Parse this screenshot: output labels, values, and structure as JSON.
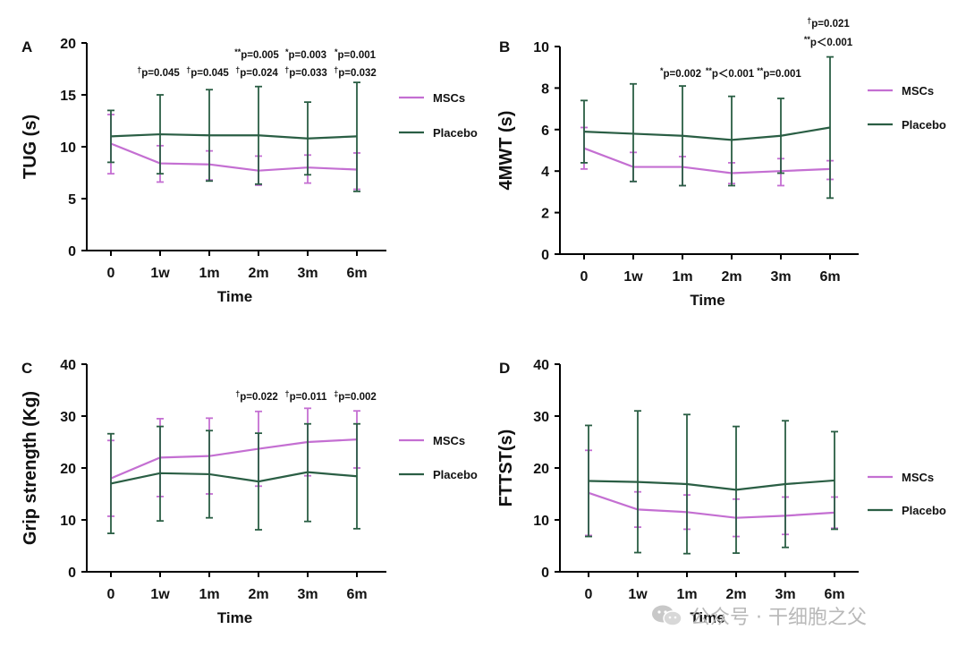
{
  "colors": {
    "msc": "#c46fd2",
    "placebo": "#2a5e44",
    "axis": "#000000"
  },
  "watermark": {
    "text": "公众号 · 干细胞之父",
    "icon": "wechat-icon"
  },
  "chart_data": [
    {
      "type": "line",
      "panel_label": "A",
      "categories": [
        "0",
        "1w",
        "1m",
        "2m",
        "3m",
        "6m"
      ],
      "xlabel": "Time",
      "ylabel": "TUG (s)",
      "ylim": [
        0,
        20
      ],
      "yticks": [
        0,
        5,
        10,
        15,
        20
      ],
      "legend_position": "right",
      "series": [
        {
          "name": "MSCs",
          "values": [
            10.3,
            8.4,
            8.3,
            7.7,
            8.0,
            7.8
          ],
          "err_low": [
            7.4,
            6.6,
            6.8,
            6.3,
            6.5,
            5.9
          ],
          "err_high": [
            13.1,
            10.1,
            9.6,
            9.1,
            9.2,
            9.4
          ]
        },
        {
          "name": "Placebo",
          "values": [
            11.0,
            11.2,
            11.1,
            11.1,
            10.8,
            11.0
          ],
          "err_low": [
            8.5,
            7.4,
            6.7,
            6.4,
            7.3,
            5.7
          ],
          "err_high": [
            13.5,
            15.0,
            15.5,
            15.8,
            14.3,
            16.2
          ]
        }
      ],
      "annotations": [
        {
          "category": "1w",
          "level": 1,
          "mark": "†",
          "text": "p=0.045"
        },
        {
          "category": "1m",
          "level": 1,
          "mark": "†",
          "text": "p=0.045"
        },
        {
          "category": "2m",
          "level": 2,
          "mark": "**",
          "text": "p=0.005"
        },
        {
          "category": "2m",
          "level": 1,
          "mark": "†",
          "text": "p=0.024"
        },
        {
          "category": "3m",
          "level": 2,
          "mark": "*",
          "text": "p=0.003"
        },
        {
          "category": "3m",
          "level": 1,
          "mark": "†",
          "text": "p=0.033"
        },
        {
          "category": "6m",
          "level": 2,
          "mark": "*",
          "text": "p=0.001"
        },
        {
          "category": "6m",
          "level": 1,
          "mark": "†",
          "text": "p=0.032"
        }
      ]
    },
    {
      "type": "line",
      "panel_label": "B",
      "categories": [
        "0",
        "1w",
        "1m",
        "2m",
        "3m",
        "6m"
      ],
      "xlabel": "Time",
      "ylabel": "4MWT (s)",
      "ylim": [
        0,
        10
      ],
      "yticks": [
        0,
        2,
        4,
        6,
        8,
        10
      ],
      "legend_position": "right",
      "series": [
        {
          "name": "MSCs",
          "values": [
            5.1,
            4.2,
            4.2,
            3.9,
            4.0,
            4.1
          ],
          "err_low": [
            4.1,
            3.5,
            3.3,
            3.4,
            3.3,
            3.6
          ],
          "err_high": [
            6.1,
            4.9,
            4.7,
            4.4,
            4.6,
            4.5
          ]
        },
        {
          "name": "Placebo",
          "values": [
            5.9,
            5.8,
            5.7,
            5.5,
            5.7,
            6.1
          ],
          "err_low": [
            4.4,
            3.5,
            3.3,
            3.3,
            3.9,
            2.7
          ],
          "err_high": [
            7.4,
            8.2,
            8.1,
            7.6,
            7.5,
            9.5
          ]
        }
      ],
      "annotations": [
        {
          "category": "1m",
          "level": 1,
          "mark": "*",
          "text": "p=0.002"
        },
        {
          "category": "2m",
          "level": 1,
          "mark": "**",
          "text": "p＜0.001"
        },
        {
          "category": "3m",
          "level": 1,
          "mark": "**",
          "text": "p=0.001"
        },
        {
          "category": "6m",
          "level": 3,
          "mark": "†",
          "text": "p=0.021"
        },
        {
          "category": "6m",
          "level": 2,
          "mark": "**",
          "text": "p＜0.001"
        }
      ]
    },
    {
      "type": "line",
      "panel_label": "C",
      "categories": [
        "0",
        "1w",
        "1m",
        "2m",
        "3m",
        "6m"
      ],
      "xlabel": "Time",
      "ylabel": "Grip strength (Kg)",
      "ylim": [
        0,
        40
      ],
      "yticks": [
        0,
        10,
        20,
        30,
        40
      ],
      "legend_position": "right",
      "series": [
        {
          "name": "MSCs",
          "values": [
            18.0,
            22.0,
            22.3,
            23.7,
            25.0,
            25.5
          ],
          "err_low": [
            10.7,
            14.5,
            15.0,
            16.5,
            18.5,
            20.0
          ],
          "err_high": [
            25.3,
            29.5,
            29.6,
            30.9,
            31.5,
            31.0
          ]
        },
        {
          "name": "Placebo",
          "values": [
            17.0,
            19.0,
            18.8,
            17.4,
            19.2,
            18.4
          ],
          "err_low": [
            7.4,
            9.8,
            10.4,
            8.1,
            9.7,
            8.3
          ],
          "err_high": [
            26.6,
            28.0,
            27.2,
            26.7,
            28.5,
            28.5
          ]
        }
      ],
      "annotations": [
        {
          "category": "2m",
          "level": 1,
          "mark": "†",
          "text": "p=0.022"
        },
        {
          "category": "3m",
          "level": 1,
          "mark": "†",
          "text": "p=0.011"
        },
        {
          "category": "6m",
          "level": 1,
          "mark": "‡",
          "text": "p=0.002"
        }
      ]
    },
    {
      "type": "line",
      "panel_label": "D",
      "categories": [
        "0",
        "1w",
        "1m",
        "2m",
        "3m",
        "6m"
      ],
      "xlabel": "Time",
      "ylabel": "FTTST(s)",
      "ylim": [
        0,
        40
      ],
      "yticks": [
        0,
        10,
        20,
        30,
        40
      ],
      "legend_position": "right",
      "series": [
        {
          "name": "MSCs",
          "values": [
            15.2,
            12.0,
            11.5,
            10.4,
            10.8,
            11.4
          ],
          "err_low": [
            7.0,
            8.6,
            8.2,
            6.8,
            7.2,
            8.4
          ],
          "err_high": [
            23.4,
            15.4,
            14.8,
            14.0,
            14.4,
            14.4
          ]
        },
        {
          "name": "Placebo",
          "values": [
            17.5,
            17.3,
            16.9,
            15.8,
            16.9,
            17.6
          ],
          "err_low": [
            6.8,
            3.7,
            3.5,
            3.6,
            4.7,
            8.2
          ],
          "err_high": [
            28.2,
            31.0,
            30.3,
            28.0,
            29.1,
            27.0
          ]
        }
      ],
      "annotations": []
    }
  ]
}
